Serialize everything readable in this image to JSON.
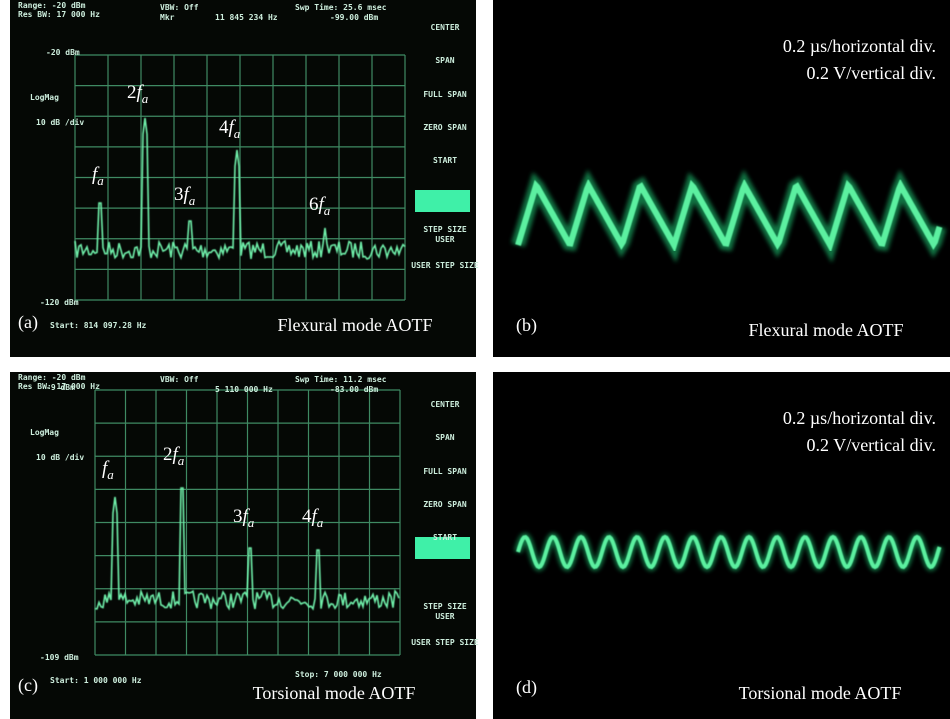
{
  "panels": [
    {
      "label": "(a)",
      "caption": "Flexural mode AOTF",
      "screen": {
        "range": "Range: -20 dBm",
        "res_bw": "Res BW: 17 000 Hz",
        "vbw": "VBW: Off",
        "mkr": "Mkr",
        "mkr_freq": "11 845 234 Hz",
        "sweep": "Swp Time: 25.6 msec",
        "mkr_level": "-99.00 dBm",
        "ref_top": "-20 dBm",
        "logmag": "LogMag",
        "scale": "10 dB /div",
        "ref_bottom": "-120 dBm",
        "start": "Start: 814 097.28 Hz",
        "softkeys": [
          "CENTER",
          "SPAN",
          "FULL SPAN",
          "ZERO SPAN",
          "START",
          "STEP SIZE",
          "USER",
          "USER STEP SIZE"
        ]
      },
      "harmonics": [
        {
          "var": "f",
          "sub": "a"
        },
        {
          "prefix": "2",
          "var": "f",
          "sub": "a"
        },
        {
          "prefix": "3",
          "var": "f",
          "sub": "a"
        },
        {
          "prefix": "4",
          "var": "f",
          "sub": "a"
        },
        {
          "prefix": "6",
          "var": "f",
          "sub": "a"
        }
      ]
    },
    {
      "label": "(b)",
      "caption": "Flexural mode AOTF",
      "scale_lines": [
        "0.2 µs/horizontal div.",
        "0.2 V/vertical div."
      ]
    },
    {
      "label": "(c)",
      "caption": "Torsional mode AOTF",
      "screen": {
        "range": "Range: -20 dBm",
        "res_bw": "Res BW: 17 000 Hz",
        "vbw": "VBW: Off",
        "mkr_freq": "5 110 000 Hz",
        "sweep": "Swp Time: 11.2 msec",
        "mkr_level": "-83.00 dBm",
        "ref_top": "-9 dBm",
        "logmag": "LogMag",
        "scale": "10 dB /div",
        "ref_bottom": "-109 dBm",
        "start": "Start: 1 000 000 Hz",
        "stop": "Stop: 7 000 000 Hz",
        "softkeys": [
          "CENTER",
          "SPAN",
          "FULL SPAN",
          "ZERO SPAN",
          "START",
          "STEP SIZE",
          "USER",
          "USER STEP SIZE"
        ]
      },
      "harmonics": [
        {
          "var": "f",
          "sub": "a"
        },
        {
          "prefix": "2",
          "var": "f",
          "sub": "a"
        },
        {
          "prefix": "3",
          "var": "f",
          "sub": "a"
        },
        {
          "prefix": "4",
          "var": "f",
          "sub": "a"
        }
      ]
    },
    {
      "label": "(d)",
      "caption": "Torsional mode AOTF",
      "scale_lines": [
        "0.2 µs/horizontal div.",
        "0.2 V/vertical div."
      ]
    }
  ]
}
